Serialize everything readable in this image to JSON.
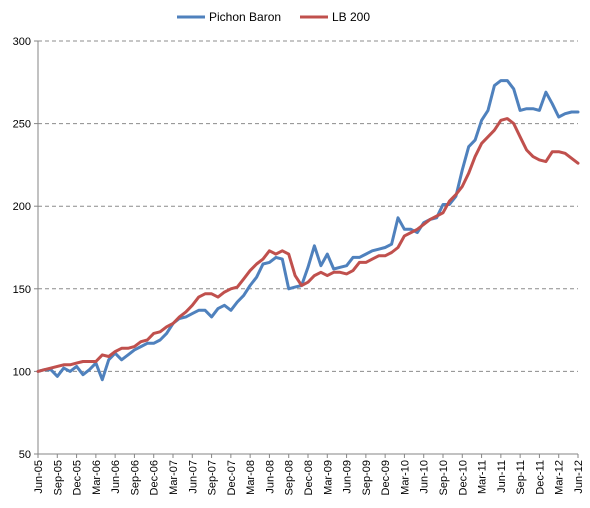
{
  "chart_data": {
    "type": "line",
    "title": "",
    "xlabel": "",
    "ylabel": "",
    "ylim": [
      50,
      300
    ],
    "yticks": [
      50,
      100,
      150,
      200,
      250,
      300
    ],
    "grid": "horizontal dashed",
    "legend_position": "top",
    "x": [
      "Jun-05",
      "Jul-05",
      "Aug-05",
      "Sep-05",
      "Oct-05",
      "Nov-05",
      "Dec-05",
      "Jan-06",
      "Feb-06",
      "Mar-06",
      "Apr-06",
      "May-06",
      "Jun-06",
      "Jul-06",
      "Aug-06",
      "Sep-06",
      "Oct-06",
      "Nov-06",
      "Dec-06",
      "Jan-07",
      "Feb-07",
      "Mar-07",
      "Apr-07",
      "May-07",
      "Jun-07",
      "Jul-07",
      "Aug-07",
      "Sep-07",
      "Oct-07",
      "Nov-07",
      "Dec-07",
      "Jan-08",
      "Feb-08",
      "Mar-08",
      "Apr-08",
      "May-08",
      "Jun-08",
      "Jul-08",
      "Aug-08",
      "Sep-08",
      "Oct-08",
      "Nov-08",
      "Dec-08",
      "Jan-09",
      "Feb-09",
      "Mar-09",
      "Apr-09",
      "May-09",
      "Jun-09",
      "Jul-09",
      "Aug-09",
      "Sep-09",
      "Oct-09",
      "Nov-09",
      "Dec-09",
      "Jan-10",
      "Feb-10",
      "Mar-10",
      "Apr-10",
      "May-10",
      "Jun-10",
      "Jul-10",
      "Aug-10",
      "Sep-10",
      "Oct-10",
      "Nov-10",
      "Dec-10",
      "Jan-11",
      "Feb-11",
      "Mar-11",
      "Apr-11",
      "May-11",
      "Jun-11",
      "Jul-11",
      "Aug-11",
      "Sep-11",
      "Oct-11",
      "Nov-11",
      "Dec-11",
      "Jan-12",
      "Feb-12",
      "Mar-12",
      "Apr-12",
      "May-12",
      "Jun-12"
    ],
    "x_tick_labels": [
      "Jun-05",
      "Sep-05",
      "Dec-05",
      "Mar-06",
      "Jun-06",
      "Sep-06",
      "Dec-06",
      "Mar-07",
      "Jun-07",
      "Sep-07",
      "Dec-07",
      "Mar-08",
      "Jun-08",
      "Sep-08",
      "Dec-08",
      "Mar-09",
      "Jun-09",
      "Sep-09",
      "Dec-09",
      "Mar-10",
      "Jun-10",
      "Sep-10",
      "Dec-10",
      "Mar-11",
      "Jun-11",
      "Sep-11",
      "Dec-11",
      "Mar-12",
      "Jun-12"
    ],
    "series": [
      {
        "name": "Pichon Baron",
        "color": "#4F81BD",
        "values": [
          100,
          101,
          101,
          97,
          102,
          100,
          103,
          98,
          101,
          105,
          95,
          107,
          111,
          107,
          110,
          113,
          115,
          117,
          117,
          119,
          123,
          129,
          132,
          133,
          135,
          137,
          137,
          133,
          138,
          140,
          137,
          142,
          146,
          152,
          157,
          165,
          166,
          169,
          168,
          150,
          151,
          152,
          163,
          176,
          164,
          171,
          162,
          163,
          164,
          169,
          169,
          171,
          173,
          174,
          175,
          177,
          193,
          186,
          186,
          184,
          190,
          192,
          193,
          201,
          201,
          206,
          222,
          236,
          240,
          252,
          258,
          273,
          276,
          276,
          271,
          258,
          259,
          259,
          258,
          269,
          262,
          254,
          256,
          257,
          257
        ]
      },
      {
        "name": "LB 200",
        "color": "#C0504D",
        "values": [
          100,
          101,
          102,
          103,
          104,
          104,
          105,
          106,
          106,
          106,
          110,
          109,
          112,
          114,
          114,
          115,
          118,
          119,
          123,
          124,
          127,
          129,
          133,
          136,
          140,
          145,
          147,
          147,
          145,
          148,
          150,
          151,
          156,
          161,
          165,
          168,
          173,
          171,
          173,
          171,
          158,
          152,
          154,
          158,
          160,
          158,
          160,
          160,
          159,
          161,
          166,
          166,
          168,
          170,
          170,
          172,
          175,
          182,
          184,
          186,
          189,
          192,
          194,
          196,
          203,
          207,
          212,
          220,
          230,
          238,
          242,
          246,
          252,
          253,
          250,
          242,
          234,
          230,
          228,
          227,
          233,
          233,
          232,
          229,
          226
        ]
      }
    ]
  }
}
